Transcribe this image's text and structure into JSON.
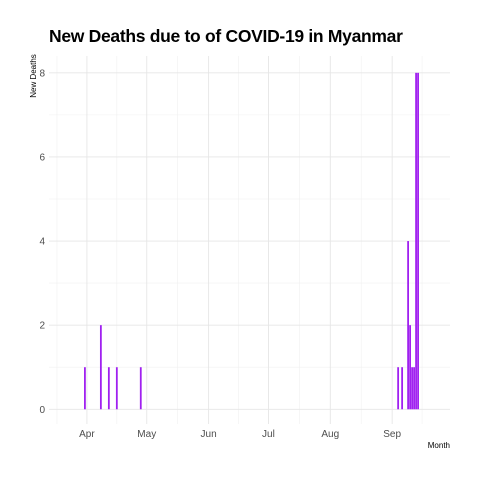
{
  "chart_data": {
    "type": "bar",
    "title": "New Deaths due to of COVID-19 in Myanmar",
    "xlabel": "Month",
    "ylabel": "New Deaths",
    "x_axis_type": "date",
    "xlim": [
      "2020-03-13",
      "2020-09-30"
    ],
    "ylim": [
      -0.35,
      8.4
    ],
    "yticks": [
      0,
      2,
      4,
      6,
      8
    ],
    "xticks": [
      {
        "date": "2020-04-01",
        "label": "Apr"
      },
      {
        "date": "2020-05-01",
        "label": "May"
      },
      {
        "date": "2020-06-01",
        "label": "Jun"
      },
      {
        "date": "2020-07-01",
        "label": "Jul"
      },
      {
        "date": "2020-08-01",
        "label": "Aug"
      },
      {
        "date": "2020-09-01",
        "label": "Sep"
      }
    ],
    "grid": true,
    "bar_color": "#a020f0",
    "series": [
      {
        "x": [
          "2020-03-31",
          "2020-04-08",
          "2020-04-12",
          "2020-04-16",
          "2020-04-28",
          "2020-09-04",
          "2020-09-06",
          "2020-09-09",
          "2020-09-10",
          "2020-09-11",
          "2020-09-12",
          "2020-09-13",
          "2020-09-14"
        ],
        "values": [
          1,
          2,
          1,
          1,
          1,
          1,
          1,
          4,
          2,
          1,
          1,
          8,
          8
        ]
      }
    ]
  }
}
